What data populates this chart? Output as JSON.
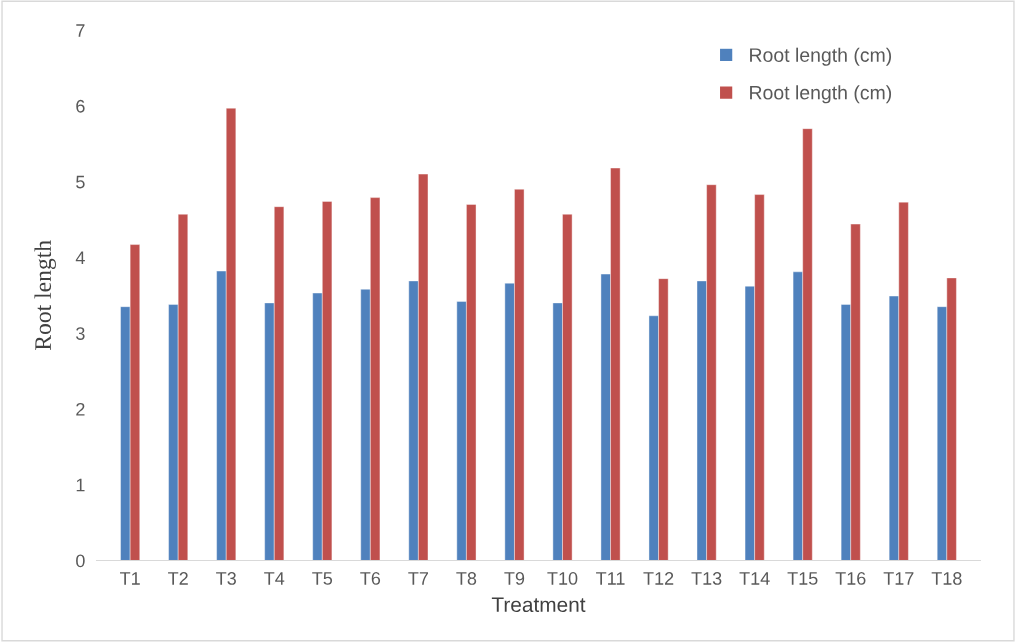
{
  "chart_data": {
    "type": "bar",
    "xlabel": "Treatment",
    "ylabel": "Root length",
    "categories": [
      "T1",
      "T2",
      "T3",
      "T4",
      "T5",
      "T6",
      "T7",
      "T8",
      "T9",
      "T10",
      "T11",
      "T12",
      "T13",
      "T14",
      "T15",
      "T16",
      "T17",
      "T18"
    ],
    "series": [
      {
        "name": "Root length (cm)",
        "color": "#4f81bd",
        "values": [
          3.35,
          3.38,
          3.82,
          3.4,
          3.53,
          3.58,
          3.69,
          3.42,
          3.66,
          3.4,
          3.78,
          3.23,
          3.69,
          3.62,
          3.81,
          3.38,
          3.49,
          3.35
        ]
      },
      {
        "name": "Root length (cm)",
        "color": "#c0504d",
        "values": [
          4.17,
          4.57,
          5.97,
          4.67,
          4.74,
          4.79,
          5.1,
          4.7,
          4.9,
          4.57,
          5.18,
          3.72,
          4.96,
          4.83,
          5.7,
          4.44,
          4.73,
          3.73
        ]
      }
    ],
    "ylim": [
      0,
      7
    ],
    "yticks": [
      0,
      1,
      2,
      3,
      4,
      5,
      6,
      7
    ],
    "grid": false,
    "legend": "top right"
  }
}
